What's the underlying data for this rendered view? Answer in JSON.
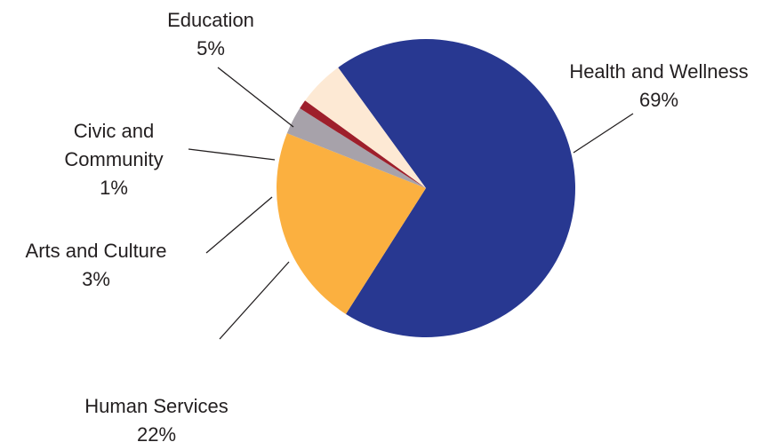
{
  "chart_data": {
    "type": "pie",
    "title": "",
    "slices": [
      {
        "label_lines": [
          "Health and Wellness"
        ],
        "value_label": "69%",
        "value": 69,
        "color": "#283891"
      },
      {
        "label_lines": [
          "Human Services"
        ],
        "value_label": "22%",
        "value": 22,
        "color": "#fbb040"
      },
      {
        "label_lines": [
          "Arts and Culture"
        ],
        "value_label": "3%",
        "value": 3,
        "color": "#a7a2aa"
      },
      {
        "label_lines": [
          "Civic and",
          "Community"
        ],
        "value_label": "1%",
        "value": 1,
        "color": "#9e1f2b"
      },
      {
        "label_lines": [
          "Education"
        ],
        "value_label": "5%",
        "value": 5,
        "color": "#fde9d4"
      }
    ]
  }
}
